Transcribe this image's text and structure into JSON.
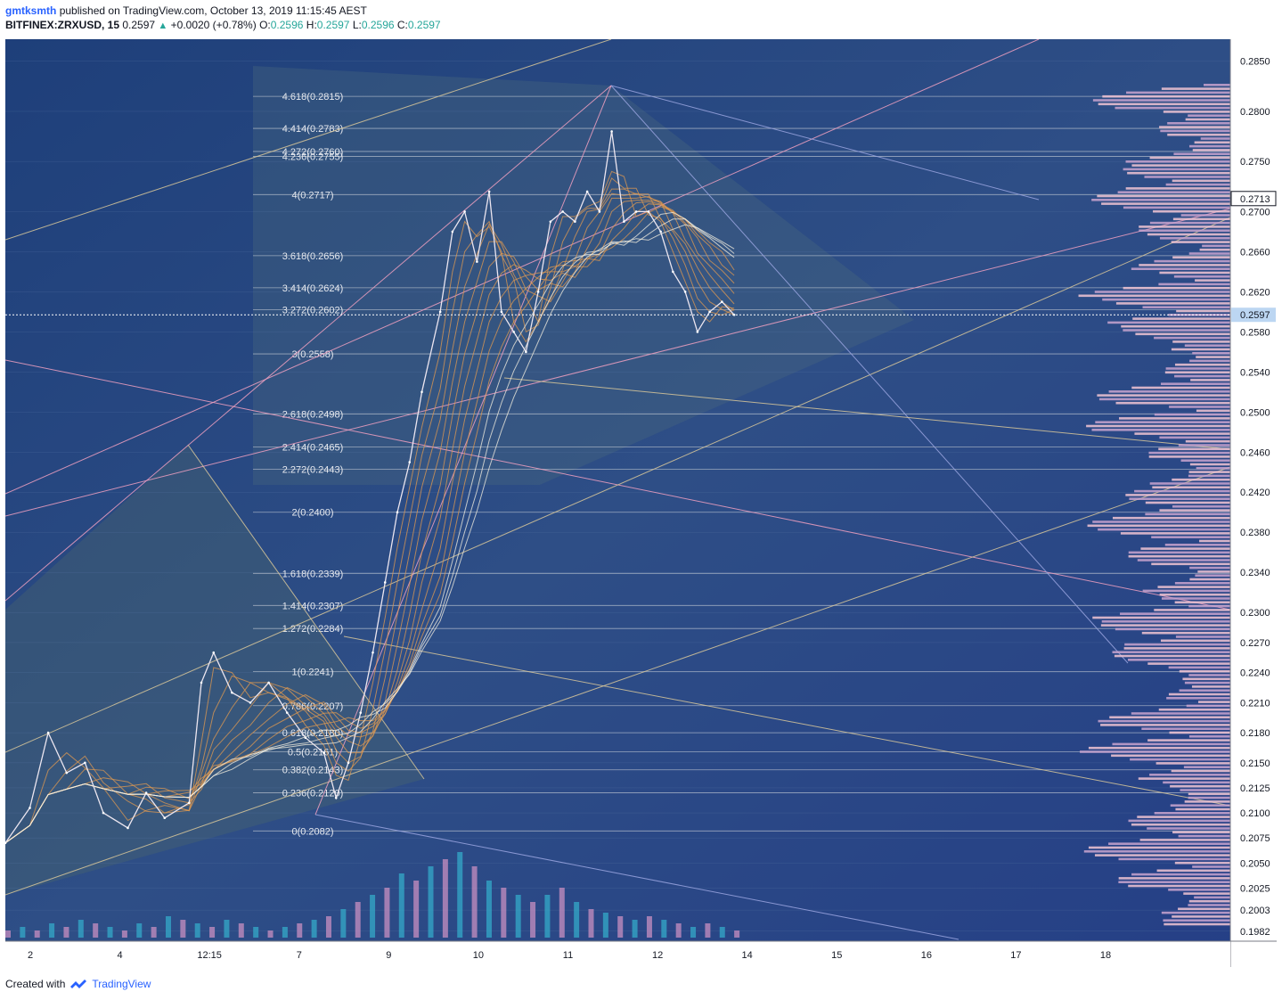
{
  "header": {
    "user": "gmtksmth",
    "published_text": "published on TradingView.com, October 13, 2019 11:15:45 AEST",
    "symbol": "BITFINEX:ZRXUSD, 15",
    "last": "0.2597",
    "change": "+0.0020 (+0.78%)",
    "o_label": "O:",
    "o_value": "0.2596",
    "h_label": "H:",
    "h_value": "0.2597",
    "l_label": "L:",
    "l_value": "0.2596",
    "c_label": "C:",
    "c_value": "0.2597"
  },
  "footer": {
    "created_with": "Created with",
    "brand": "TradingView"
  },
  "chart_data": {
    "type": "line",
    "symbol": "BITFINEX:ZRXUSD",
    "timeframe": "15",
    "ylim": [
      0.1972,
      0.2872
    ],
    "price_axis_ticks": [
      "0.2850",
      "0.2800",
      "0.2750",
      "0.2700",
      "0.2660",
      "0.2620",
      "0.2580",
      "0.2540",
      "0.2500",
      "0.2460",
      "0.2420",
      "0.2380",
      "0.2340",
      "0.2300",
      "0.2270",
      "0.2240",
      "0.2210",
      "0.2180",
      "0.2150",
      "0.2125",
      "0.2100",
      "0.2075",
      "0.2050",
      "0.2025",
      "0.2003",
      "0.1982"
    ],
    "time_axis_ticks": [
      "2",
      "4",
      "12:15",
      "7",
      "9",
      "10",
      "11",
      "12",
      "14",
      "15",
      "16",
      "17",
      "18"
    ],
    "last_price_label": "0.2597",
    "marker_price_label": "0.2713",
    "fib_levels": [
      {
        "label": "4.618(0.2815)",
        "price": 0.2815
      },
      {
        "label": "4.414(0.2783)",
        "price": 0.2783
      },
      {
        "label": "4.272(0.2760)",
        "price": 0.276
      },
      {
        "label": "4.236(0.2755)",
        "price": 0.2755
      },
      {
        "label": "4(0.2717)",
        "price": 0.2717
      },
      {
        "label": "3.618(0.2656)",
        "price": 0.2656
      },
      {
        "label": "3.414(0.2624)",
        "price": 0.2624
      },
      {
        "label": "3.272(0.2602)",
        "price": 0.2602
      },
      {
        "label": "3(0.2558)",
        "price": 0.2558
      },
      {
        "label": "2.618(0.2498)",
        "price": 0.2498
      },
      {
        "label": "2.414(0.2465)",
        "price": 0.2465
      },
      {
        "label": "2.272(0.2443)",
        "price": 0.2443
      },
      {
        "label": "2(0.2400)",
        "price": 0.24
      },
      {
        "label": "1.618(0.2339)",
        "price": 0.2339
      },
      {
        "label": "1.414(0.2307)",
        "price": 0.2307
      },
      {
        "label": "1.272(0.2284)",
        "price": 0.2284
      },
      {
        "label": "1(0.2241)",
        "price": 0.2241
      },
      {
        "label": "0.786(0.2207)",
        "price": 0.2207
      },
      {
        "label": "0.618(0.2180)",
        "price": 0.218
      },
      {
        "label": "0.5(0.2161)",
        "price": 0.2161
      },
      {
        "label": "0.382(0.2143)",
        "price": 0.2143
      },
      {
        "label": "0.236(0.2120)",
        "price": 0.212
      },
      {
        "label": "0(0.2082)",
        "price": 0.2082
      }
    ],
    "price_series": [
      {
        "t": 0.0,
        "p": 0.207
      },
      {
        "t": 0.02,
        "p": 0.2105
      },
      {
        "t": 0.035,
        "p": 0.218
      },
      {
        "t": 0.05,
        "p": 0.214
      },
      {
        "t": 0.065,
        "p": 0.215
      },
      {
        "t": 0.08,
        "p": 0.21
      },
      {
        "t": 0.1,
        "p": 0.2085
      },
      {
        "t": 0.115,
        "p": 0.212
      },
      {
        "t": 0.13,
        "p": 0.2095
      },
      {
        "t": 0.15,
        "p": 0.211
      },
      {
        "t": 0.16,
        "p": 0.223
      },
      {
        "t": 0.17,
        "p": 0.226
      },
      {
        "t": 0.185,
        "p": 0.222
      },
      {
        "t": 0.2,
        "p": 0.221
      },
      {
        "t": 0.215,
        "p": 0.223
      },
      {
        "t": 0.23,
        "p": 0.22
      },
      {
        "t": 0.245,
        "p": 0.2175
      },
      {
        "t": 0.26,
        "p": 0.216
      },
      {
        "t": 0.27,
        "p": 0.2115
      },
      {
        "t": 0.28,
        "p": 0.215
      },
      {
        "t": 0.29,
        "p": 0.22
      },
      {
        "t": 0.3,
        "p": 0.226
      },
      {
        "t": 0.31,
        "p": 0.233
      },
      {
        "t": 0.32,
        "p": 0.24
      },
      {
        "t": 0.33,
        "p": 0.245
      },
      {
        "t": 0.34,
        "p": 0.252
      },
      {
        "t": 0.355,
        "p": 0.26
      },
      {
        "t": 0.365,
        "p": 0.268
      },
      {
        "t": 0.375,
        "p": 0.27
      },
      {
        "t": 0.385,
        "p": 0.265
      },
      {
        "t": 0.395,
        "p": 0.272
      },
      {
        "t": 0.405,
        "p": 0.26
      },
      {
        "t": 0.415,
        "p": 0.258
      },
      {
        "t": 0.425,
        "p": 0.256
      },
      {
        "t": 0.435,
        "p": 0.262
      },
      {
        "t": 0.445,
        "p": 0.269
      },
      {
        "t": 0.455,
        "p": 0.27
      },
      {
        "t": 0.465,
        "p": 0.269
      },
      {
        "t": 0.475,
        "p": 0.272
      },
      {
        "t": 0.485,
        "p": 0.27
      },
      {
        "t": 0.495,
        "p": 0.278
      },
      {
        "t": 0.505,
        "p": 0.269
      },
      {
        "t": 0.515,
        "p": 0.27
      },
      {
        "t": 0.525,
        "p": 0.27
      },
      {
        "t": 0.535,
        "p": 0.268
      },
      {
        "t": 0.545,
        "p": 0.264
      },
      {
        "t": 0.555,
        "p": 0.262
      },
      {
        "t": 0.565,
        "p": 0.258
      },
      {
        "t": 0.575,
        "p": 0.26
      },
      {
        "t": 0.585,
        "p": 0.261
      },
      {
        "t": 0.595,
        "p": 0.2597
      }
    ],
    "volume_series": [
      2,
      3,
      2,
      4,
      3,
      5,
      4,
      3,
      2,
      4,
      3,
      6,
      5,
      4,
      3,
      5,
      4,
      3,
      2,
      3,
      4,
      5,
      6,
      8,
      10,
      12,
      14,
      18,
      16,
      20,
      22,
      24,
      20,
      16,
      14,
      12,
      10,
      12,
      14,
      10,
      8,
      7,
      6,
      5,
      6,
      5,
      4,
      3,
      4,
      3,
      2
    ]
  }
}
